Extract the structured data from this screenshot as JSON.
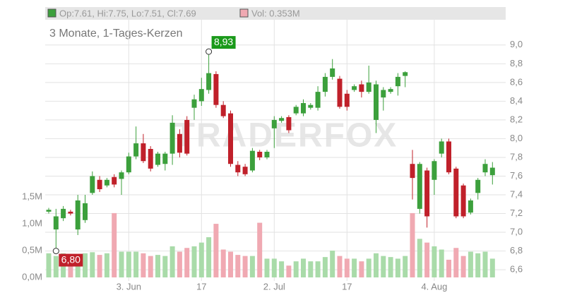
{
  "chart_data": {
    "type": "candlestick",
    "subtitle": "3 Monate, 1-Tages-Kerzen",
    "legend_price": "Op:7.61, Hi:7.75, Lo:7.51, Cl:7.69",
    "legend_volume": "Vol: 0.353M",
    "watermark": "TRADERFOX",
    "up_color": "#3ca03c",
    "down_color": "#c0202a",
    "volume_up_color": "#a9dba9",
    "volume_down_color": "#f0a9b2",
    "categories": [
      null,
      null,
      null,
      null,
      null,
      null,
      null,
      null,
      null,
      null,
      null,
      "3. Jun",
      null,
      null,
      null,
      null,
      null,
      null,
      null,
      null,
      null,
      "17",
      null,
      null,
      null,
      null,
      null,
      null,
      null,
      null,
      null,
      "2. Jul",
      null,
      null,
      null,
      null,
      null,
      null,
      null,
      null,
      null,
      "17",
      null,
      null,
      null,
      null,
      null,
      null,
      null,
      null,
      null,
      null,
      null,
      "4. Aug",
      null,
      null,
      null,
      null,
      null,
      null,
      null,
      null
    ],
    "open": [
      7.22,
      7.03,
      7.15,
      7.22,
      7.03,
      7.13,
      7.42,
      7.56,
      7.5,
      7.59,
      7.57,
      7.64,
      7.81,
      7.95,
      7.89,
      7.72,
      7.73,
      7.84,
      8.05,
      8.2,
      8.33,
      8.4,
      8.52,
      8.69,
      8.36,
      8.27,
      7.72,
      7.7,
      7.66,
      7.86,
      7.8,
      8.11,
      8.19,
      8.23,
      8.27,
      8.27,
      8.33,
      8.33,
      8.5,
      8.66,
      8.64,
      8.48,
      8.52,
      8.58,
      8.5,
      8.2,
      8.44,
      8.5,
      8.56,
      8.67,
      7.73,
      7.25,
      7.66,
      7.56,
      7.84,
      7.97,
      7.68,
      7.5,
      7.21,
      7.42,
      7.64,
      7.61
    ],
    "high": [
      7.26,
      7.25,
      7.28,
      7.24,
      7.4,
      7.4,
      7.65,
      7.6,
      7.58,
      7.62,
      7.66,
      7.85,
      8.13,
      8.05,
      7.92,
      7.86,
      7.86,
      8.25,
      8.1,
      8.24,
      8.47,
      8.65,
      8.93,
      8.72,
      8.4,
      8.3,
      7.76,
      7.73,
      7.9,
      7.88,
      7.88,
      8.24,
      8.24,
      8.25,
      8.36,
      8.42,
      8.38,
      8.56,
      8.7,
      8.85,
      8.67,
      8.52,
      8.58,
      8.62,
      8.78,
      8.62,
      8.55,
      8.55,
      8.7,
      8.72,
      7.88,
      7.75,
      7.69,
      7.78,
      8.0,
      8.0,
      7.7,
      7.52,
      7.36,
      7.58,
      7.78,
      7.75
    ],
    "low": [
      7.2,
      6.8,
      7.12,
      7.18,
      6.97,
      7.1,
      7.4,
      7.43,
      7.48,
      7.48,
      7.4,
      7.62,
      7.78,
      7.74,
      7.65,
      7.7,
      7.66,
      7.72,
      7.8,
      7.82,
      8.2,
      8.35,
      8.48,
      8.33,
      8.22,
      7.7,
      7.6,
      7.6,
      7.64,
      7.77,
      7.78,
      7.9,
      8.17,
      8.06,
      8.25,
      8.24,
      8.31,
      8.3,
      8.45,
      8.63,
      8.32,
      8.3,
      8.5,
      8.44,
      8.48,
      8.06,
      8.3,
      8.48,
      8.46,
      8.55,
      7.35,
      7.2,
      7.05,
      7.4,
      7.8,
      7.62,
      7.15,
      7.15,
      7.19,
      7.35,
      7.6,
      7.51
    ],
    "close": [
      7.24,
      7.17,
      7.25,
      7.2,
      7.34,
      7.31,
      7.6,
      7.46,
      7.56,
      7.51,
      7.64,
      7.81,
      7.95,
      7.76,
      7.68,
      7.84,
      7.84,
      8.17,
      7.85,
      7.84,
      8.42,
      8.53,
      8.7,
      8.36,
      8.24,
      7.73,
      7.64,
      7.62,
      7.87,
      7.8,
      7.86,
      8.2,
      8.22,
      8.09,
      8.34,
      8.38,
      8.36,
      8.5,
      8.66,
      8.75,
      8.34,
      8.34,
      8.56,
      8.5,
      8.6,
      8.58,
      8.52,
      8.53,
      8.66,
      8.71,
      7.58,
      7.73,
      7.17,
      7.76,
      7.97,
      7.64,
      7.17,
      7.17,
      7.34,
      7.56,
      7.73,
      7.69
    ],
    "volume": [
      0.45,
      0.4,
      0.45,
      0.4,
      0.42,
      0.45,
      0.47,
      0.42,
      0.45,
      1.2,
      0.48,
      0.48,
      0.48,
      0.45,
      0.4,
      0.42,
      0.4,
      0.58,
      0.48,
      0.55,
      0.58,
      0.65,
      0.75,
      1.0,
      0.52,
      0.48,
      0.42,
      0.4,
      0.4,
      1.02,
      0.35,
      0.35,
      0.3,
      0.22,
      0.3,
      0.35,
      0.3,
      0.3,
      0.38,
      0.5,
      0.4,
      0.35,
      0.35,
      0.3,
      0.35,
      0.45,
      0.4,
      0.38,
      0.35,
      0.4,
      1.2,
      0.72,
      0.65,
      0.58,
      0.52,
      0.33,
      0.55,
      0.4,
      0.48,
      0.45,
      0.48,
      0.35
    ],
    "max_label": "8,93",
    "max_index": 22,
    "min_label": "6,80",
    "min_index": 1,
    "ylim": [
      6.48,
      9.27
    ],
    "yticks": [
      {
        "value": 6.6,
        "label": "6,6"
      },
      {
        "value": 6.8,
        "label": "6,8"
      },
      {
        "value": 7.0,
        "label": "7,0"
      },
      {
        "value": 7.2,
        "label": "7,2"
      },
      {
        "value": 7.4,
        "label": "7,4"
      },
      {
        "value": 7.6,
        "label": "7,6"
      },
      {
        "value": 7.8,
        "label": "7,8"
      },
      {
        "value": 8.0,
        "label": "8,0"
      },
      {
        "value": 8.2,
        "label": "8,2"
      },
      {
        "value": 8.4,
        "label": "8,4"
      },
      {
        "value": 8.6,
        "label": "8,6"
      },
      {
        "value": 8.8,
        "label": "8,8"
      },
      {
        "value": 9.0,
        "label": "9,0"
      }
    ],
    "y2lim": [
      0,
      4.9
    ],
    "y2ticks": [
      {
        "value": 0,
        "label": "0,0M"
      },
      {
        "value": 0.5,
        "label": "0,5M"
      },
      {
        "value": 1.0,
        "label": "1,0M"
      },
      {
        "value": 1.5,
        "label": "1,5M"
      }
    ],
    "grid": true
  }
}
